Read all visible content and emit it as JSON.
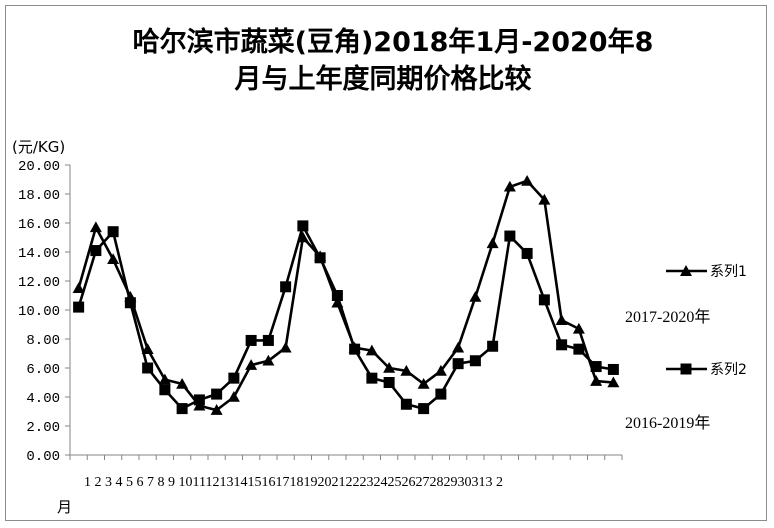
{
  "chart_data": {
    "type": "line",
    "title_lines": [
      "哈尔滨市蔬菜(豆角)2018年1月-2020年8",
      "月与上年度同期价格比较"
    ],
    "ylabel": "(元/KG)",
    "xlabel": "月",
    "ylim": [
      0,
      20
    ],
    "yticks": [
      "0.00",
      "2.00",
      "4.00",
      "6.00",
      "8.00",
      "10.00",
      "12.00",
      "14.00",
      "16.00",
      "18.00",
      "20.00"
    ],
    "categories": [
      "1",
      "2",
      "3",
      "4",
      "5",
      "6",
      "7",
      "8",
      "9",
      "10",
      "11",
      "12",
      "13",
      "14",
      "15",
      "16",
      "17",
      "18",
      "19",
      "20",
      "21",
      "22",
      "23",
      "24",
      "25",
      "26",
      "27",
      "28",
      "29",
      "30",
      "31",
      "32"
    ],
    "x_label_text": "1  2  3  4  5  6  7  8  9 101112131415161718192021222324252627282930313 2",
    "grid": false,
    "legend_position": "right",
    "series": [
      {
        "name": "系列1",
        "marker": "triangle",
        "color": "#000000",
        "annotation": "2017-2020年",
        "values": [
          11.5,
          15.7,
          13.5,
          10.9,
          7.3,
          5.2,
          4.9,
          3.4,
          3.1,
          4.0,
          6.2,
          6.5,
          7.4,
          15.0,
          13.7,
          10.5,
          7.4,
          7.2,
          6.0,
          5.8,
          4.9,
          5.8,
          7.4,
          10.9,
          14.6,
          18.5,
          18.9,
          17.6,
          9.3,
          8.7,
          5.1,
          5.0
        ]
      },
      {
        "name": "系列2",
        "marker": "square",
        "color": "#000000",
        "annotation": "2016-2019年",
        "values": [
          10.2,
          14.1,
          15.4,
          10.5,
          6.0,
          4.5,
          3.2,
          3.8,
          4.2,
          5.3,
          7.9,
          7.9,
          11.6,
          15.8,
          13.6,
          11.0,
          7.3,
          5.3,
          5.0,
          3.5,
          3.2,
          4.2,
          6.3,
          6.5,
          7.5,
          15.1,
          13.9,
          10.7,
          7.6,
          7.3,
          6.1,
          5.9
        ]
      }
    ]
  }
}
